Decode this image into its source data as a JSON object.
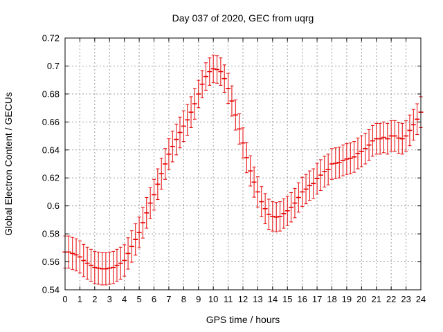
{
  "chart_data": {
    "type": "scatter-errorbar",
    "title": "Day 037 of 2020, GEC from uqrg",
    "xlabel": "GPS time / hours",
    "ylabel": "Global Electron Content / GECUs",
    "xlim": [
      0,
      24
    ],
    "ylim": [
      0.54,
      0.72
    ],
    "grid": true,
    "legend": "none",
    "series_color": "#e60000",
    "grid_color": "#9a9a9a",
    "axis_color": "#000000",
    "background_color": "#ffffff",
    "xticks": [
      0,
      1,
      2,
      3,
      4,
      5,
      6,
      7,
      8,
      9,
      10,
      11,
      12,
      13,
      14,
      15,
      16,
      17,
      18,
      19,
      20,
      21,
      22,
      23,
      24
    ],
    "yticks": [
      0.54,
      0.56,
      0.58,
      0.6,
      0.62,
      0.64,
      0.66,
      0.68,
      0.7,
      0.72
    ],
    "ytick_labels": [
      "0.54",
      "0.56",
      "0.58",
      "0.6",
      "0.62",
      "0.64",
      "0.66",
      "0.68",
      "0.7",
      "0.72"
    ],
    "x": [
      0,
      0.25,
      0.5,
      0.75,
      1,
      1.25,
      1.5,
      1.75,
      2,
      2.25,
      2.5,
      2.75,
      3,
      3.25,
      3.5,
      3.75,
      4,
      4.25,
      4.5,
      4.75,
      5,
      5.25,
      5.5,
      5.75,
      6,
      6.25,
      6.5,
      6.75,
      7,
      7.25,
      7.5,
      7.75,
      8,
      8.25,
      8.5,
      8.75,
      9,
      9.25,
      9.5,
      9.75,
      10,
      10.25,
      10.5,
      10.75,
      11,
      11.25,
      11.5,
      11.75,
      12,
      12.25,
      12.5,
      12.75,
      13,
      13.25,
      13.5,
      13.75,
      14,
      14.25,
      14.5,
      14.75,
      15,
      15.25,
      15.5,
      15.75,
      16,
      16.25,
      16.5,
      16.75,
      17,
      17.25,
      17.5,
      17.75,
      18,
      18.25,
      18.5,
      18.75,
      19,
      19.25,
      19.5,
      19.75,
      20,
      20.25,
      20.5,
      20.75,
      21,
      21.25,
      21.5,
      21.75,
      22,
      22.25,
      22.5,
      22.75,
      23,
      23.25,
      23.5,
      23.75,
      24
    ],
    "y": [
      0.567,
      0.567,
      0.566,
      0.565,
      0.5635,
      0.561,
      0.559,
      0.5575,
      0.556,
      0.5555,
      0.555,
      0.555,
      0.5555,
      0.556,
      0.5575,
      0.559,
      0.561,
      0.566,
      0.571,
      0.576,
      0.581,
      0.588,
      0.595,
      0.602,
      0.608,
      0.6155,
      0.623,
      0.63,
      0.637,
      0.6425,
      0.6475,
      0.6525,
      0.657,
      0.6615,
      0.667,
      0.673,
      0.68,
      0.687,
      0.6925,
      0.696,
      0.698,
      0.6975,
      0.696,
      0.691,
      0.684,
      0.675,
      0.665,
      0.655,
      0.645,
      0.6345,
      0.625,
      0.617,
      0.61,
      0.603,
      0.598,
      0.594,
      0.5925,
      0.592,
      0.5925,
      0.5945,
      0.5965,
      0.599,
      0.602,
      0.606,
      0.61,
      0.612,
      0.6145,
      0.616,
      0.6195,
      0.622,
      0.6245,
      0.626,
      0.63,
      0.6305,
      0.631,
      0.6325,
      0.6335,
      0.634,
      0.635,
      0.6375,
      0.639,
      0.641,
      0.6435,
      0.6465,
      0.648,
      0.648,
      0.649,
      0.648,
      0.65,
      0.65,
      0.6485,
      0.648,
      0.65,
      0.654,
      0.658,
      0.662,
      0.667
    ],
    "yerr": [
      0.0115,
      0.0115,
      0.0115,
      0.0115,
      0.0115,
      0.0115,
      0.0115,
      0.0115,
      0.0115,
      0.0115,
      0.0115,
      0.0115,
      0.0115,
      0.0115,
      0.0115,
      0.0115,
      0.0112,
      0.0112,
      0.0112,
      0.0112,
      0.011,
      0.011,
      0.011,
      0.011,
      0.011,
      0.011,
      0.011,
      0.011,
      0.011,
      0.011,
      0.011,
      0.011,
      0.011,
      0.011,
      0.011,
      0.011,
      0.0098,
      0.0098,
      0.0098,
      0.0098,
      0.0098,
      0.0098,
      0.0098,
      0.0098,
      0.0108,
      0.0108,
      0.0108,
      0.0108,
      0.0108,
      0.0108,
      0.0108,
      0.0108,
      0.0108,
      0.0108,
      0.0108,
      0.0108,
      0.0105,
      0.0105,
      0.0105,
      0.0105,
      0.0105,
      0.0105,
      0.0105,
      0.0105,
      0.0105,
      0.0105,
      0.0105,
      0.0105,
      0.011,
      0.011,
      0.011,
      0.011,
      0.011,
      0.011,
      0.011,
      0.011,
      0.011,
      0.011,
      0.011,
      0.011,
      0.011,
      0.011,
      0.011,
      0.011,
      0.011,
      0.011,
      0.011,
      0.011,
      0.011,
      0.011,
      0.011,
      0.011,
      0.011,
      0.011,
      0.011,
      0.011,
      0.011
    ]
  }
}
